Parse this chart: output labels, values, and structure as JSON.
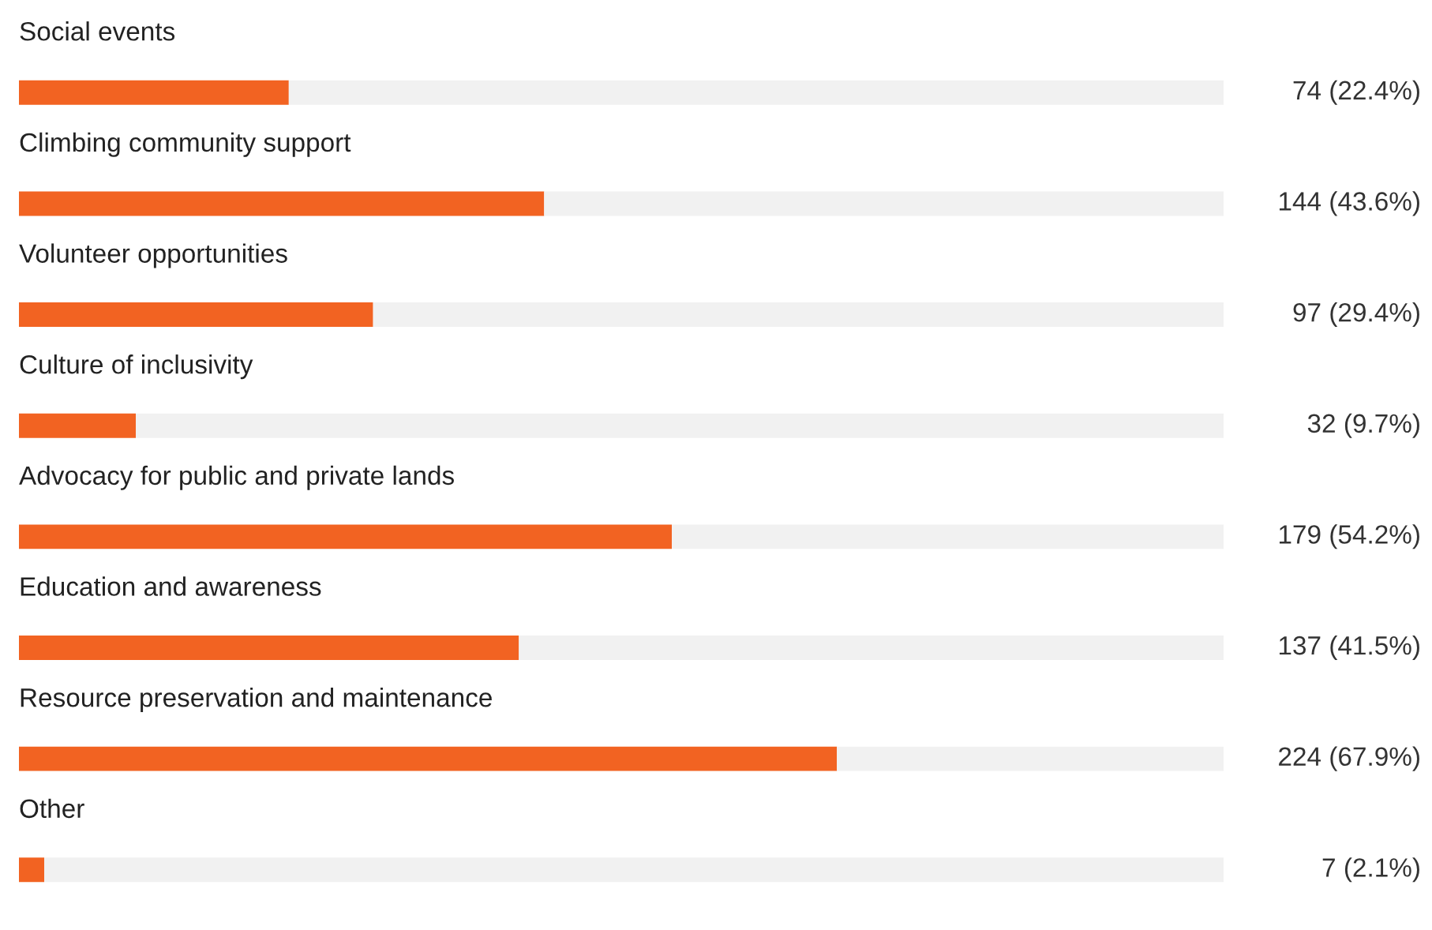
{
  "chart_data": {
    "type": "bar",
    "orientation": "horizontal",
    "stacked": true,
    "categories": [
      "Social events",
      "Climbing community support",
      "Volunteer opportunities",
      "Culture of inclusivity",
      "Advocacy for public and private lands",
      "Education and awareness",
      "Resource preservation and maintenance",
      "Other"
    ],
    "series": [
      {
        "color": "#f26322",
        "values": [
          22.4,
          43.6,
          29.4,
          9.7,
          54.2,
          41.5,
          67.9,
          2.1
        ],
        "value_labels": [
          "74 (22.4%)",
          "144 (43.6%)",
          "97 (29.4%)",
          "32 (9.7%)",
          "179 (54.2%)",
          "137 (41.5%)",
          "224 (67.9%)",
          "7 (2.1%)"
        ]
      },
      {
        "color": "#f1f1f1",
        "values": [
          77.6,
          56.4,
          70.6,
          90.3,
          45.8,
          58.5,
          32.1,
          97.9
        ]
      }
    ],
    "xlim": [
      0,
      100
    ]
  }
}
